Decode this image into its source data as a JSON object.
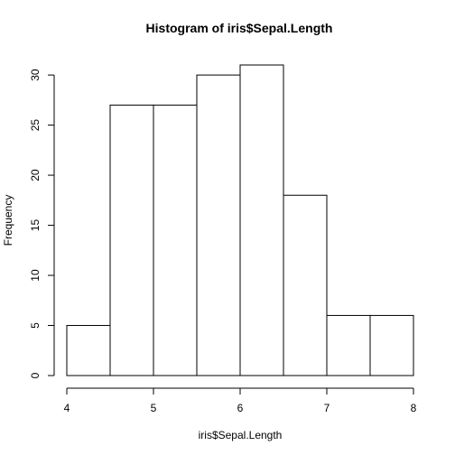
{
  "chart_data": {
    "type": "bar",
    "title": "Histogram of iris$Sepal.Length",
    "xlabel": "iris$Sepal.Length",
    "ylabel": "Frequency",
    "bins": [
      {
        "start": 4.0,
        "end": 4.5,
        "count": 5
      },
      {
        "start": 4.5,
        "end": 5.0,
        "count": 27
      },
      {
        "start": 5.0,
        "end": 5.5,
        "count": 27
      },
      {
        "start": 5.5,
        "end": 6.0,
        "count": 30
      },
      {
        "start": 6.0,
        "end": 6.5,
        "count": 31
      },
      {
        "start": 6.5,
        "end": 7.0,
        "count": 18
      },
      {
        "start": 7.0,
        "end": 7.5,
        "count": 6
      },
      {
        "start": 7.5,
        "end": 8.0,
        "count": 6
      }
    ],
    "xlim": [
      4,
      8
    ],
    "ylim": [
      0,
      31
    ],
    "x_ticks": [
      "4",
      "5",
      "6",
      "7",
      "8"
    ],
    "y_ticks": [
      "0",
      "5",
      "10",
      "15",
      "20",
      "25",
      "30"
    ],
    "grid": false,
    "bar_fill": "#ffffff",
    "bar_stroke": "#000000"
  }
}
